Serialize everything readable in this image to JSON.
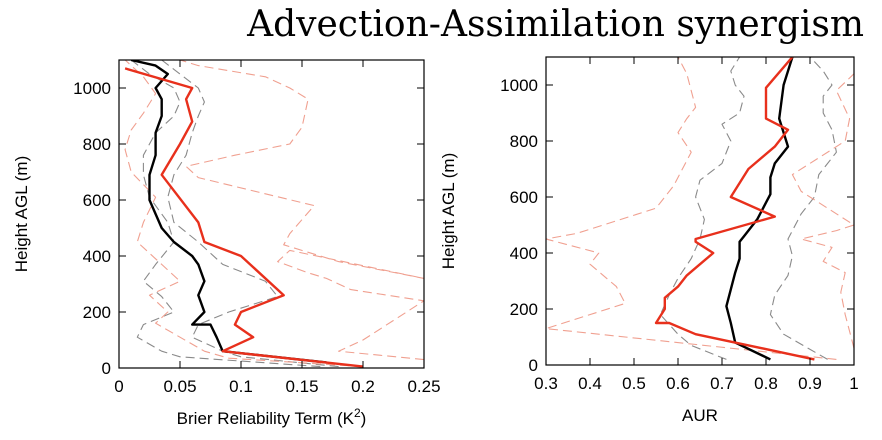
{
  "page": {
    "title": "Advection-Assimilation synergism"
  },
  "colors": {
    "black": "#000000",
    "red": "#e8301c",
    "lightred": "#f0a090",
    "gray": "#8a8a8a",
    "axis": "#000000"
  },
  "chart_data": [
    {
      "id": "left",
      "type": "line",
      "xlabel_main": "Brier Reliability Term (K",
      "xlabel_sup": "2",
      "xlabel_end": ")",
      "ylabel": "Height AGL (m)",
      "xlim": [
        0,
        0.25
      ],
      "ylim": [
        0,
        1100
      ],
      "xticks": [
        0,
        0.05,
        0.1,
        0.15,
        0.2,
        0.25
      ],
      "xtick_labels": [
        "0",
        "0.05",
        "0.1",
        "0.15",
        "0.2",
        "0.25"
      ],
      "yticks": [
        0,
        200,
        400,
        600,
        800,
        1000
      ],
      "ytick_labels": [
        "0",
        "200",
        "400",
        "600",
        "800",
        "1000"
      ],
      "series": [
        {
          "style": "gray-dash",
          "x": [
            0.165,
            0.05,
            0.035,
            0.015,
            0.02,
            0.045,
            0.035,
            0.02,
            0.03,
            0.045,
            0.04,
            0.025,
            0.02,
            0.02,
            0.03,
            0.045,
            0.05,
            0.045,
            0.025,
            0.01
          ],
          "y": [
            5,
            40,
            60,
            110,
            155,
            200,
            255,
            310,
            370,
            450,
            520,
            610,
            690,
            760,
            840,
            900,
            950,
            1000,
            1050,
            1100
          ]
        },
        {
          "style": "gray-dash",
          "x": [
            0.18,
            0.1,
            0.085,
            0.06,
            0.065,
            0.09,
            0.13,
            0.12,
            0.085,
            0.065,
            0.045,
            0.04,
            0.045,
            0.055,
            0.06,
            0.065,
            0.07,
            0.065,
            0.05,
            0.035
          ],
          "y": [
            5,
            40,
            60,
            110,
            155,
            200,
            255,
            310,
            370,
            450,
            520,
            610,
            690,
            760,
            840,
            900,
            950,
            1000,
            1050,
            1100
          ]
        },
        {
          "style": "red-dash",
          "x": [
            0.2,
            0.09,
            0.07,
            0.05,
            0.03,
            0.04,
            0.025,
            0.05,
            0.035,
            0.015,
            0.02,
            0.03,
            0.01,
            0.005,
            0.01,
            0.02,
            0.03,
            0.02,
            0.005
          ],
          "y": [
            5,
            35,
            60,
            110,
            160,
            200,
            260,
            310,
            370,
            450,
            520,
            610,
            700,
            780,
            850,
            910,
            980,
            1040,
            1100
          ]
        },
        {
          "style": "red-dash",
          "x": [
            0.25,
            0.18,
            0.2,
            0.25,
            0.19,
            0.17,
            0.155,
            0.13,
            0.14,
            0.25,
            0.18,
            0.135,
            0.14,
            0.16,
            0.065,
            0.055,
            0.095,
            0.14,
            0.15,
            0.155,
            0.14,
            0.12,
            0.065,
            0.05
          ],
          "y": [
            30,
            60,
            100,
            240,
            280,
            320,
            340,
            380,
            420,
            320,
            380,
            440,
            480,
            580,
            680,
            720,
            760,
            800,
            860,
            960,
            1000,
            1040,
            1080,
            1100
          ]
        },
        {
          "style": "black",
          "x": [
            0.17,
            0.085,
            0.08,
            0.075,
            0.06,
            0.07,
            0.065,
            0.07,
            0.065,
            0.06,
            0.045,
            0.035,
            0.025,
            0.025,
            0.03,
            0.03,
            0.035,
            0.035,
            0.03,
            0.04,
            0.03,
            0.01
          ],
          "y": [
            20,
            60,
            110,
            155,
            155,
            200,
            260,
            310,
            370,
            400,
            450,
            500,
            600,
            690,
            760,
            840,
            900,
            960,
            1000,
            1050,
            1080,
            1100
          ]
        },
        {
          "style": "red",
          "x": [
            0.2,
            0.085,
            0.11,
            0.095,
            0.1,
            0.135,
            0.1,
            0.07,
            0.065,
            0.035,
            0.05,
            0.06,
            0.055,
            0.06,
            0.005
          ],
          "y": [
            5,
            60,
            110,
            155,
            200,
            260,
            400,
            450,
            520,
            690,
            800,
            880,
            960,
            1000,
            1070
          ]
        }
      ]
    },
    {
      "id": "right",
      "type": "line",
      "xlabel": "AUR",
      "ylabel": "Height AGL (m)",
      "xlim": [
        0.3,
        1.0
      ],
      "ylim": [
        0,
        1100
      ],
      "xticks": [
        0.3,
        0.4,
        0.5,
        0.6,
        0.7,
        0.8,
        0.9,
        1.0
      ],
      "xtick_labels": [
        "0.3",
        "0.4",
        "0.5",
        "0.6",
        "0.7",
        "0.8",
        "0.9",
        "1"
      ],
      "yticks": [
        0,
        200,
        400,
        600,
        800,
        1000
      ],
      "ytick_labels": [
        "0",
        "200",
        "400",
        "600",
        "800",
        "1000"
      ],
      "series": [
        {
          "style": "gray-dash",
          "x": [
            0.71,
            0.63,
            0.6,
            0.56,
            0.58,
            0.6,
            0.63,
            0.65,
            0.66,
            0.64,
            0.65,
            0.7,
            0.72,
            0.7,
            0.74,
            0.75,
            0.73,
            0.72,
            0.74
          ],
          "y": [
            20,
            70,
            110,
            180,
            250,
            310,
            380,
            450,
            520,
            600,
            660,
            720,
            800,
            860,
            900,
            960,
            1000,
            1050,
            1100
          ]
        },
        {
          "style": "gray-dash",
          "x": [
            0.94,
            0.84,
            0.81,
            0.82,
            0.85,
            0.86,
            0.85,
            0.88,
            0.91,
            0.92,
            0.96,
            0.95,
            0.93,
            0.93,
            0.95,
            0.93,
            0.9
          ],
          "y": [
            20,
            110,
            180,
            250,
            320,
            390,
            450,
            540,
            600,
            680,
            760,
            840,
            900,
            960,
            1000,
            1050,
            1100
          ]
        },
        {
          "style": "red-dash",
          "x": [
            0.96,
            0.3,
            0.48,
            0.46,
            0.4,
            0.42,
            0.3,
            0.37,
            0.55,
            0.59,
            0.61,
            0.63,
            0.6,
            0.62,
            0.64,
            0.63,
            0.62,
            0.6
          ],
          "y": [
            20,
            130,
            220,
            280,
            360,
            400,
            450,
            470,
            560,
            640,
            700,
            760,
            830,
            880,
            920,
            980,
            1040,
            1100
          ]
        },
        {
          "style": "red-dash",
          "x": [
            1.0,
            0.98,
            0.97,
            0.98,
            0.93,
            0.95,
            0.88,
            0.96,
            1.0,
            0.94,
            0.88,
            0.86,
            0.92,
            0.98,
            0.99,
            0.96,
            1.0
          ],
          "y": [
            60,
            180,
            260,
            330,
            370,
            420,
            450,
            480,
            500,
            560,
            620,
            680,
            740,
            800,
            880,
            980,
            1040
          ]
        },
        {
          "style": "black",
          "x": [
            0.81,
            0.73,
            0.72,
            0.71,
            0.72,
            0.73,
            0.74,
            0.74,
            0.75,
            0.78,
            0.8,
            0.81,
            0.81,
            0.82,
            0.85,
            0.83,
            0.84,
            0.86
          ],
          "y": [
            20,
            80,
            150,
            210,
            270,
            330,
            380,
            440,
            460,
            520,
            580,
            610,
            670,
            720,
            780,
            880,
            1000,
            1100
          ]
        },
        {
          "style": "red",
          "x": [
            0.91,
            0.64,
            0.58,
            0.55,
            0.57,
            0.57,
            0.6,
            0.62,
            0.65,
            0.68,
            0.64,
            0.64,
            0.82,
            0.72,
            0.76,
            0.82,
            0.85,
            0.8,
            0.8,
            0.86
          ],
          "y": [
            20,
            110,
            150,
            150,
            200,
            240,
            280,
            320,
            360,
            400,
            440,
            450,
            530,
            600,
            700,
            780,
            840,
            880,
            990,
            1100
          ]
        }
      ]
    }
  ]
}
